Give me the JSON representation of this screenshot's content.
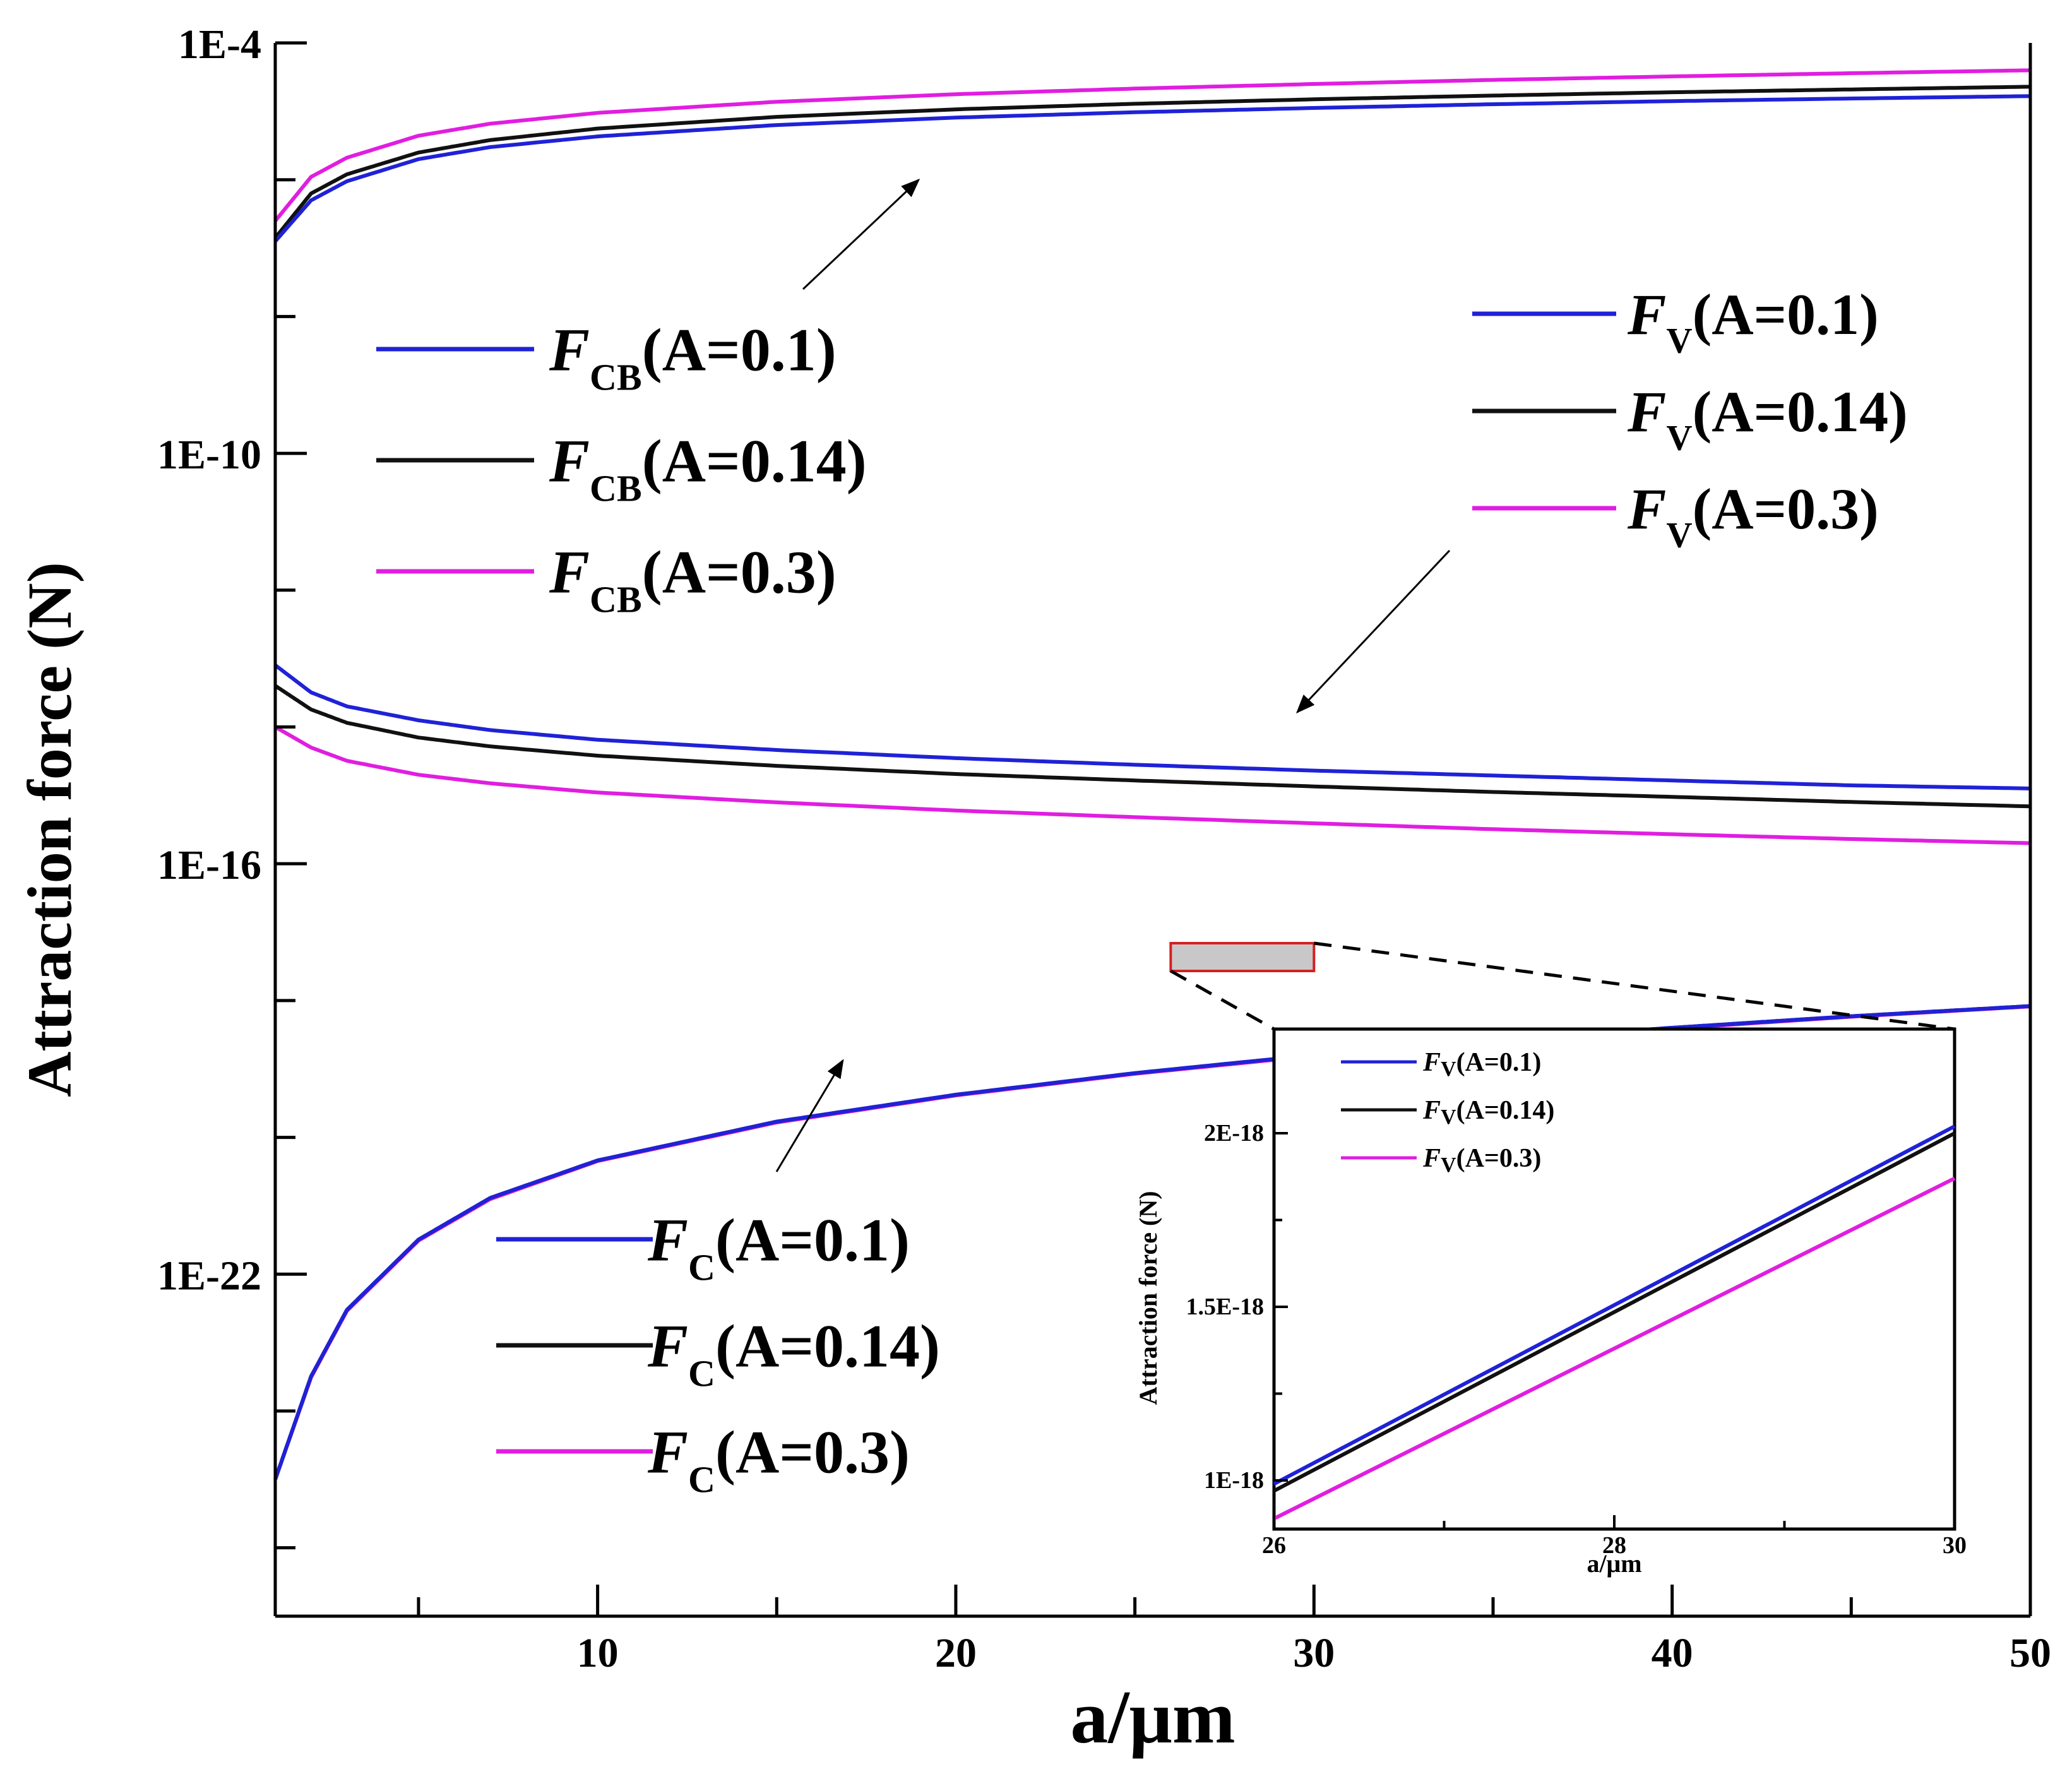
{
  "chart_data": [
    {
      "id": "main",
      "type": "line",
      "xlabel": "a/μm",
      "ylabel": "Attraction force (N)",
      "xlim": [
        1,
        50
      ],
      "ylim": [
        1e-27,
        0.0001
      ],
      "yscale": "log",
      "x_ticks": [
        10,
        20,
        30,
        40,
        50
      ],
      "x_tick_labels": [
        "10",
        "20",
        "30",
        "40",
        "50"
      ],
      "y_ticks": [
        0.0001,
        1e-10,
        1e-16,
        1e-22
      ],
      "y_tick_labels": [
        "1E-4",
        "1E-10",
        "1E-16",
        "1E-22"
      ],
      "x": [
        1,
        2,
        3,
        5,
        7,
        10,
        15,
        20,
        25,
        30,
        35,
        40,
        45,
        50
      ],
      "series": [
        {
          "group": "FCB",
          "sub": "CB",
          "param": "(A=0.1)",
          "color": "#1f22d6",
          "values": [
            1.26e-07,
            5e-07,
            9.5e-07,
            2e-06,
            3e-06,
            4.3e-06,
            6.3e-06,
            8.1e-06,
            9.7e-06,
            1.12e-05,
            1.27e-05,
            1.41e-05,
            1.54e-05,
            1.67e-05
          ]
        },
        {
          "group": "FCB",
          "sub": "CB",
          "param": "(A=0.14)",
          "color": "#111111",
          "values": [
            1.41e-07,
            6.3e-07,
            1.2e-06,
            2.5e-06,
            3.8e-06,
            5.6e-06,
            8.3e-06,
            1.07e-05,
            1.29e-05,
            1.5e-05,
            1.7e-05,
            1.9e-05,
            2.09e-05,
            2.29e-05
          ]
        },
        {
          "group": "FCB",
          "sub": "CB",
          "param": "(A=0.3)",
          "color": "#e01ee0",
          "values": [
            2.5e-07,
            1.1e-06,
            2.1e-06,
            4.4e-06,
            6.6e-06,
            9.5e-06,
            1.38e-05,
            1.78e-05,
            2.15e-05,
            2.51e-05,
            2.88e-05,
            3.24e-05,
            3.61e-05,
            3.98e-05
          ]
        },
        {
          "group": "FV",
          "sub": "V",
          "param": "(A=0.1)",
          "color": "#1f22d6",
          "values": [
            8e-14,
            3.2e-14,
            2e-14,
            1.25e-14,
            9e-15,
            6.5e-15,
            4.6e-15,
            3.5e-15,
            2.8e-15,
            2.3e-15,
            1.95e-15,
            1.65e-15,
            1.4e-15,
            1.26e-15
          ]
        },
        {
          "group": "FV",
          "sub": "V",
          "param": "(A=0.14)",
          "color": "#111111",
          "values": [
            4e-14,
            1.8e-14,
            1.15e-14,
            7e-15,
            5.2e-15,
            3.8e-15,
            2.7e-15,
            2.05e-15,
            1.65e-15,
            1.35e-15,
            1.12e-15,
            9.5e-16,
            8e-16,
            6.9e-16
          ]
        },
        {
          "group": "FV",
          "sub": "V",
          "param": "(A=0.3)",
          "color": "#e01ee0",
          "values": [
            1e-14,
            5e-15,
            3.2e-15,
            2e-15,
            1.5e-15,
            1.1e-15,
            7.9e-16,
            6e-16,
            4.8e-16,
            3.9e-16,
            3.2e-16,
            2.7e-16,
            2.3e-16,
            2e-16
          ]
        },
        {
          "group": "FC",
          "sub": "C",
          "param": "(A=0.1)",
          "color": "#1f22d6",
          "values": [
            1e-25,
            3.2e-24,
            3e-23,
            3.2e-22,
            1.3e-21,
            4.6e-21,
            1.7e-20,
            4.2e-20,
            8.7e-20,
            1.6e-19,
            2.6e-19,
            4e-19,
            5.9e-19,
            8.3e-19
          ]
        },
        {
          "group": "FC",
          "sub": "C",
          "param": "(A=0.14)",
          "color": "#111111",
          "values": [
            1e-25,
            3.2e-24,
            3e-23,
            3.2e-22,
            1.3e-21,
            4.6e-21,
            1.7e-20,
            4.2e-20,
            8.7e-20,
            1.6e-19,
            2.6e-19,
            4e-19,
            5.9e-19,
            8.3e-19
          ]
        },
        {
          "group": "FC",
          "sub": "C",
          "param": "(A=0.3)",
          "color": "#e01ee0",
          "values": [
            1e-25,
            3.1e-24,
            2.9e-23,
            3.1e-22,
            1.25e-21,
            4.5e-21,
            1.65e-20,
            4.1e-20,
            8.5e-20,
            1.55e-19,
            2.5e-19,
            3.9e-19,
            5.8e-19,
            8.2e-19
          ]
        }
      ],
      "zoom_region": {
        "xlim": [
          26,
          30
        ]
      }
    },
    {
      "id": "inset",
      "type": "line",
      "xlabel": "a/μm",
      "ylabel": "Attraction force (N)",
      "xlim": [
        26,
        30
      ],
      "ylim": [
        8.6e-19,
        2.3e-18
      ],
      "x_ticks": [
        26,
        28,
        30
      ],
      "x_tick_labels": [
        "26",
        "28",
        "30"
      ],
      "y_ticks": [
        1e-18,
        1.5e-18,
        2e-18
      ],
      "y_tick_labels": [
        "1E-18",
        "1.5E-18",
        "2E-18"
      ],
      "x": [
        26,
        30
      ],
      "series": [
        {
          "sub": "V",
          "param": "(A=0.1)",
          "color": "#1f22d6",
          "values": [
            9.9e-19,
            2.02e-18
          ]
        },
        {
          "sub": "V",
          "param": "(A=0.14)",
          "color": "#111111",
          "values": [
            9.7e-19,
            2e-18
          ]
        },
        {
          "sub": "V",
          "param": "(A=0.3)",
          "color": "#e01ee0",
          "values": [
            8.9e-19,
            1.87e-18
          ]
        }
      ]
    }
  ],
  "legend_letter": "F"
}
